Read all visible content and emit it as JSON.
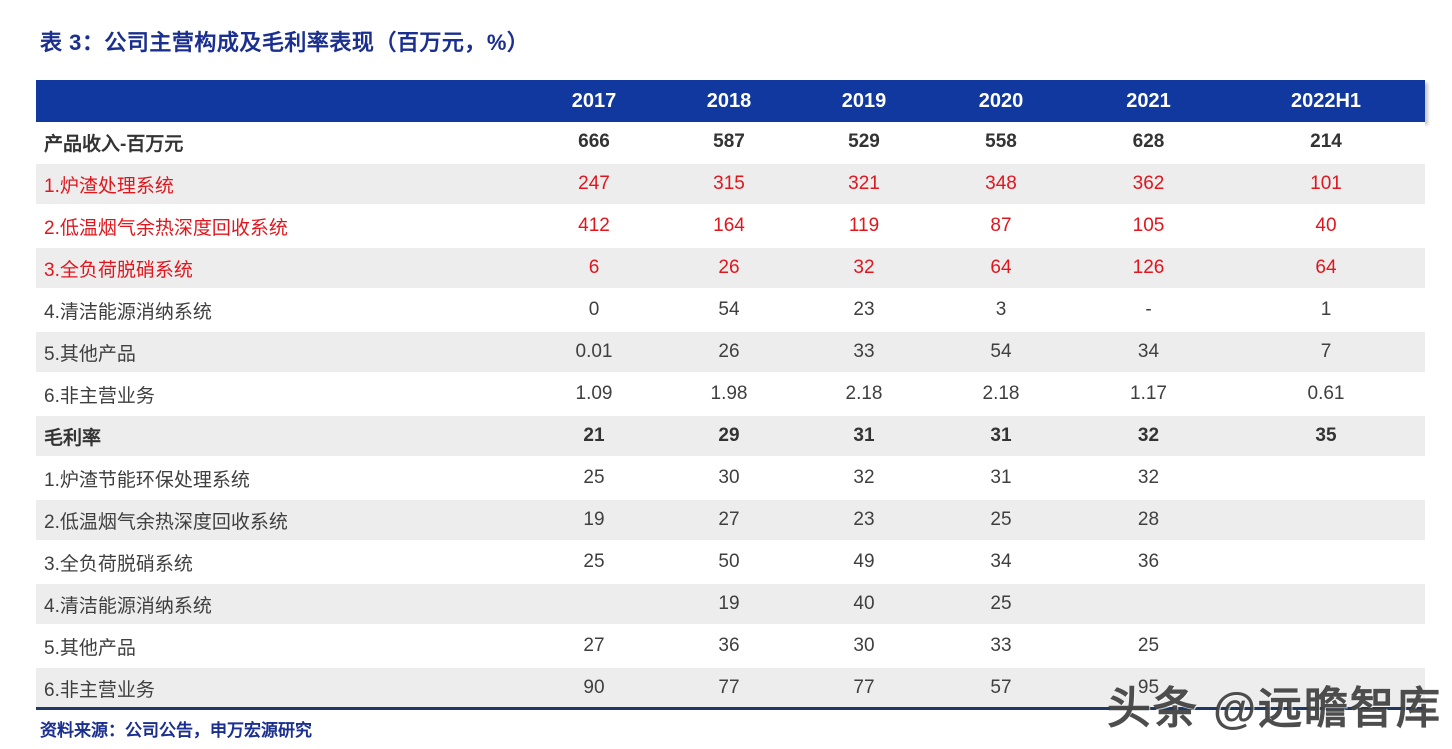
{
  "page": {
    "title": "表 3：公司主营构成及毛利率表现（百万元，%）",
    "source": "资料来源：公司公告，申万宏源研究",
    "watermark": "头条 @远瞻智库"
  },
  "colors": {
    "header_bg": "#11389e",
    "title_text": "#1a2f8f",
    "red_text": "#e0161d",
    "body_text": "#3f3f3f",
    "row_alt_bg": "#ededee",
    "bottom_rule": "#1f3864"
  },
  "chart_data": {
    "type": "table",
    "title": "表 3：公司主营构成及毛利率表现（百万元，%）",
    "columns": [
      "",
      "2017",
      "2018",
      "2019",
      "2020",
      "2021",
      "2022H1"
    ],
    "rows": [
      {
        "label": "产品收入-百万元",
        "values": [
          "666",
          "587",
          "529",
          "558",
          "628",
          "214"
        ],
        "bold": true,
        "red": false
      },
      {
        "label": "1.炉渣处理系统",
        "values": [
          "247",
          "315",
          "321",
          "348",
          "362",
          "101"
        ],
        "bold": false,
        "red": true
      },
      {
        "label": "2.低温烟气余热深度回收系统",
        "values": [
          "412",
          "164",
          "119",
          "87",
          "105",
          "40"
        ],
        "bold": false,
        "red": true
      },
      {
        "label": "3.全负荷脱硝系统",
        "values": [
          "6",
          "26",
          "32",
          "64",
          "126",
          "64"
        ],
        "bold": false,
        "red": true
      },
      {
        "label": "4.清洁能源消纳系统",
        "values": [
          "0",
          "54",
          "23",
          "3",
          "-",
          "1"
        ],
        "bold": false,
        "red": false
      },
      {
        "label": "5.其他产品",
        "values": [
          "0.01",
          "26",
          "33",
          "54",
          "34",
          "7"
        ],
        "bold": false,
        "red": false
      },
      {
        "label": "6.非主营业务",
        "values": [
          "1.09",
          "1.98",
          "2.18",
          "2.18",
          "1.17",
          "0.61"
        ],
        "bold": false,
        "red": false
      },
      {
        "label": "毛利率",
        "values": [
          "21",
          "29",
          "31",
          "31",
          "32",
          "35"
        ],
        "bold": true,
        "red": false
      },
      {
        "label": "1.炉渣节能环保处理系统",
        "values": [
          "25",
          "30",
          "32",
          "31",
          "32",
          ""
        ],
        "bold": false,
        "red": false
      },
      {
        "label": "2.低温烟气余热深度回收系统",
        "values": [
          "19",
          "27",
          "23",
          "25",
          "28",
          ""
        ],
        "bold": false,
        "red": false
      },
      {
        "label": "3.全负荷脱硝系统",
        "values": [
          "25",
          "50",
          "49",
          "34",
          "36",
          ""
        ],
        "bold": false,
        "red": false
      },
      {
        "label": "4.清洁能源消纳系统",
        "values": [
          "",
          "19",
          "40",
          "25",
          "",
          ""
        ],
        "bold": false,
        "red": false
      },
      {
        "label": "5.其他产品",
        "values": [
          "27",
          "36",
          "30",
          "33",
          "25",
          ""
        ],
        "bold": false,
        "red": false
      },
      {
        "label": "6.非主营业务",
        "values": [
          "90",
          "77",
          "77",
          "57",
          "95",
          ""
        ],
        "bold": false,
        "red": false
      }
    ],
    "source": "资料来源：公司公告，申万宏源研究"
  }
}
